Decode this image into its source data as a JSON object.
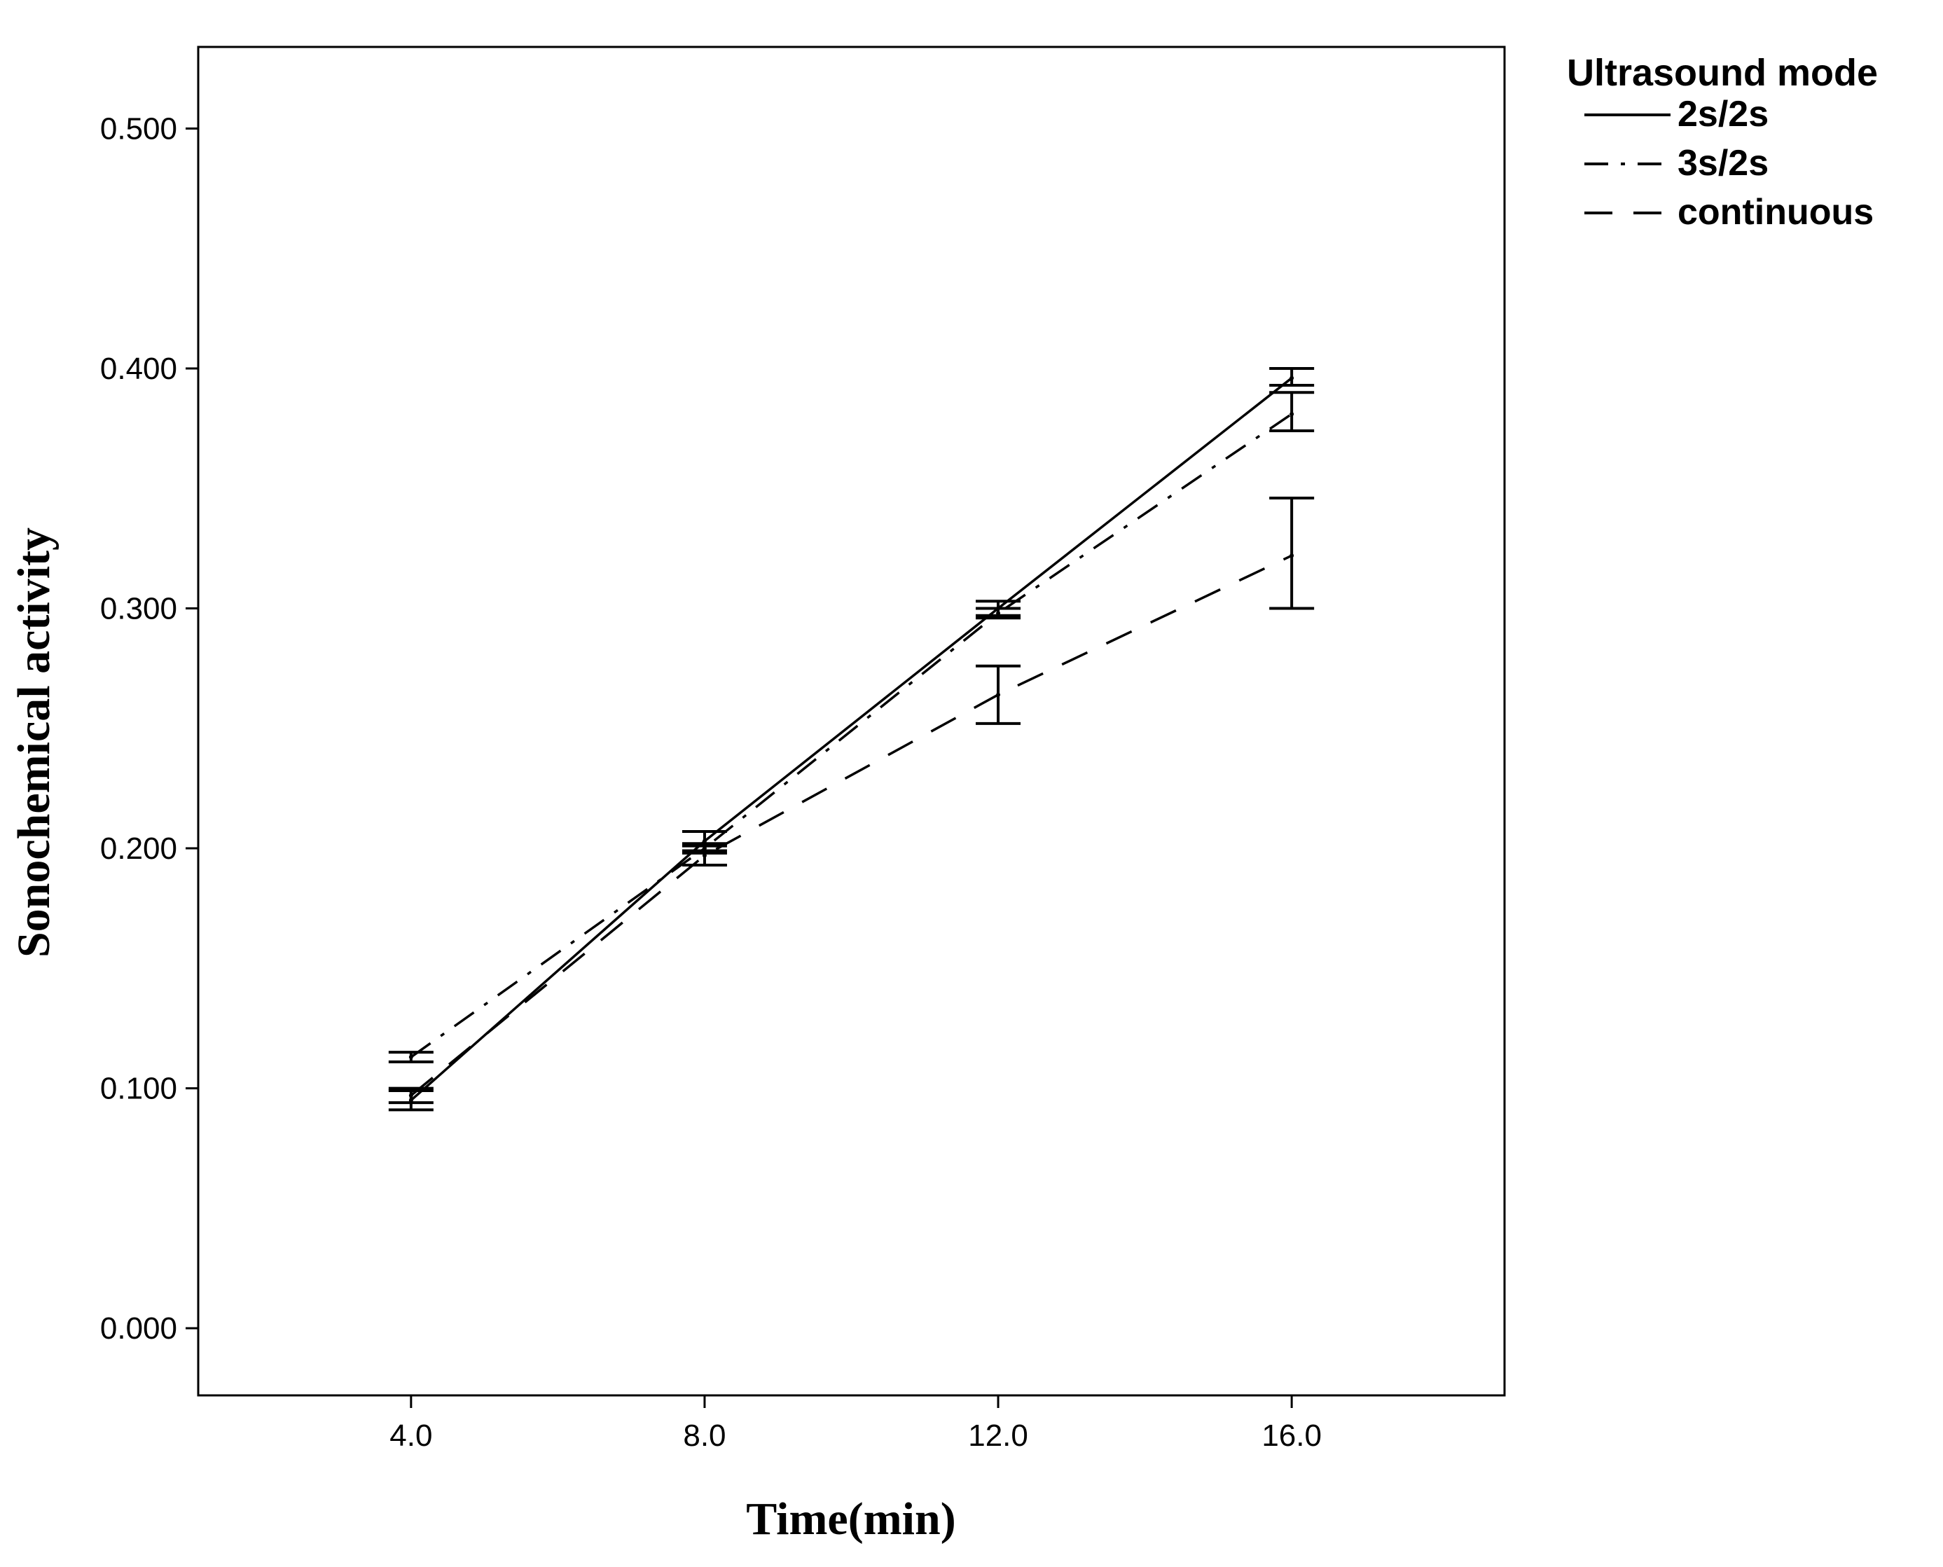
{
  "chart_data": {
    "type": "line",
    "xlabel": "Time(min)",
    "ylabel": "Sonochemical activity",
    "x": [
      4.0,
      8.0,
      12.0,
      16.0
    ],
    "x_tick_labels": [
      "4.0",
      "8.0",
      "12.0",
      "16.0"
    ],
    "xlim": [
      1.1,
      18.9
    ],
    "ylim": [
      -0.028,
      0.534
    ],
    "y_ticks": [
      0.0,
      0.1,
      0.2,
      0.3,
      0.4,
      0.5
    ],
    "y_tick_labels": [
      "0.000",
      "0.100",
      "0.200",
      "0.300",
      "0.400",
      "0.500"
    ],
    "grid": false,
    "legend": {
      "title": "Ultrasound mode",
      "placement": "outside-top-right"
    },
    "series": [
      {
        "name": "2s/2s",
        "line_style": "solid",
        "values": [
          0.095,
          0.203,
          0.3,
          0.396
        ],
        "error_low": [
          0.091,
          0.199,
          0.297,
          0.393
        ],
        "error_high": [
          0.099,
          0.207,
          0.303,
          0.4
        ]
      },
      {
        "name": "3s/2s",
        "line_style": "dash-dot",
        "values": [
          0.113,
          0.2,
          0.298,
          0.381
        ],
        "error_low": [
          0.111,
          0.198,
          0.296,
          0.374
        ],
        "error_high": [
          0.115,
          0.202,
          0.3,
          0.39
        ]
      },
      {
        "name": "continuous",
        "line_style": "dashed",
        "values": [
          0.097,
          0.197,
          0.264,
          0.322
        ],
        "error_low": [
          0.094,
          0.193,
          0.252,
          0.3
        ],
        "error_high": [
          0.1,
          0.201,
          0.276,
          0.346
        ]
      }
    ]
  }
}
